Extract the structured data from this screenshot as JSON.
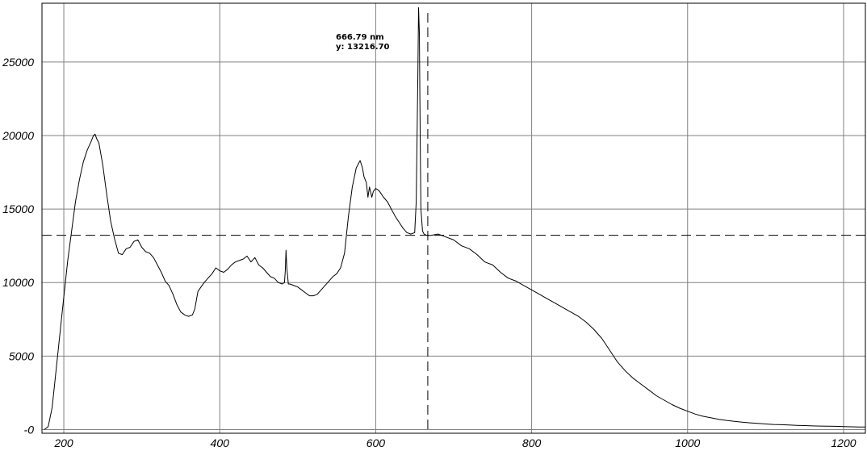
{
  "chart_data": {
    "type": "line",
    "title": "",
    "xlabel": "",
    "ylabel": "",
    "xlim": [
      172,
      1228
    ],
    "ylim": [
      -250,
      29000
    ],
    "xticks": [
      200,
      400,
      600,
      800,
      1000,
      1200
    ],
    "yticks": [
      0,
      5000,
      10000,
      15000,
      20000,
      25000
    ],
    "xtick_labels": [
      "200",
      "400",
      "600",
      "800",
      "1000",
      "1200"
    ],
    "ytick_labels": [
      "-0",
      "5000",
      "10000",
      "15000",
      "20000",
      "25000"
    ],
    "grid": true,
    "colors": {
      "line": "#000000",
      "grid": "#808080",
      "background": "#ffffff"
    },
    "cursor": {
      "x": 666.79,
      "y": 13216.7,
      "label_x": "666.79 nm",
      "label_y": "y: 13216.70"
    },
    "series": [
      {
        "x": [
          175,
          180,
          185,
          190,
          195,
          200,
          205,
          210,
          215,
          220,
          225,
          230,
          235,
          238,
          240,
          242,
          245,
          250,
          255,
          260,
          265,
          270,
          275,
          280,
          285,
          290,
          295,
          300,
          305,
          310,
          315,
          320,
          325,
          330,
          335,
          340,
          345,
          350,
          355,
          360,
          365,
          368,
          372,
          376,
          380,
          385,
          390,
          395,
          400,
          405,
          410,
          415,
          420,
          425,
          430,
          435,
          440,
          445,
          450,
          455,
          460,
          465,
          470,
          475,
          480,
          483,
          484,
          485,
          486,
          488,
          490,
          495,
          500,
          505,
          510,
          515,
          520,
          525,
          530,
          535,
          540,
          545,
          550,
          555,
          560,
          565,
          570,
          575,
          580,
          583,
          585,
          588,
          590,
          592,
          595,
          597,
          600,
          603,
          605,
          610,
          615,
          620,
          625,
          630,
          635,
          640,
          645,
          650,
          652,
          654,
          655,
          656,
          657,
          658,
          660,
          662,
          665,
          670,
          675,
          680,
          690,
          700,
          710,
          720,
          730,
          740,
          750,
          760,
          770,
          780,
          790,
          800,
          810,
          820,
          830,
          840,
          850,
          860,
          870,
          880,
          890,
          900,
          910,
          920,
          930,
          940,
          950,
          960,
          970,
          980,
          990,
          1000,
          1010,
          1020,
          1030,
          1040,
          1050,
          1060,
          1070,
          1080,
          1090,
          1100,
          1110,
          1120,
          1130,
          1140,
          1150,
          1160,
          1170,
          1180,
          1190,
          1200,
          1210,
          1220,
          1228
        ],
        "y": [
          0,
          200,
          1500,
          4000,
          6500,
          9000,
          11500,
          13500,
          15500,
          17000,
          18200,
          19000,
          19600,
          20000,
          20100,
          19800,
          19500,
          18000,
          16000,
          14200,
          13000,
          12000,
          11900,
          12300,
          12400,
          12800,
          12900,
          12400,
          12100,
          12000,
          11700,
          11200,
          10700,
          10100,
          9800,
          9200,
          8500,
          8000,
          7800,
          7700,
          7800,
          8200,
          9400,
          9700,
          10000,
          10300,
          10600,
          11000,
          10800,
          10700,
          10900,
          11200,
          11400,
          11500,
          11600,
          11800,
          11400,
          11700,
          11200,
          11000,
          10700,
          10400,
          10300,
          10000,
          9900,
          10000,
          10800,
          12200,
          11000,
          9900,
          9900,
          9800,
          9700,
          9500,
          9300,
          9100,
          9100,
          9200,
          9500,
          9800,
          10100,
          10400,
          10600,
          11000,
          12000,
          14500,
          16500,
          17800,
          18300,
          17800,
          17200,
          16800,
          15800,
          16500,
          15800,
          16200,
          16400,
          16300,
          16200,
          15800,
          15500,
          15000,
          14500,
          14100,
          13700,
          13400,
          13300,
          13400,
          15500,
          24000,
          28700,
          27000,
          20000,
          15000,
          13500,
          13300,
          13216.7,
          13200,
          13250,
          13300,
          13100,
          12900,
          12500,
          12300,
          11900,
          11400,
          11200,
          10700,
          10300,
          10100,
          9800,
          9500,
          9200,
          8900,
          8600,
          8300,
          8000,
          7700,
          7300,
          6800,
          6200,
          5400,
          4600,
          4000,
          3500,
          3100,
          2700,
          2300,
          2000,
          1700,
          1450,
          1250,
          1050,
          900,
          800,
          700,
          620,
          560,
          500,
          460,
          420,
          380,
          350,
          330,
          310,
          290,
          270,
          250,
          240,
          230,
          220,
          200,
          190,
          180,
          170
        ]
      }
    ]
  }
}
